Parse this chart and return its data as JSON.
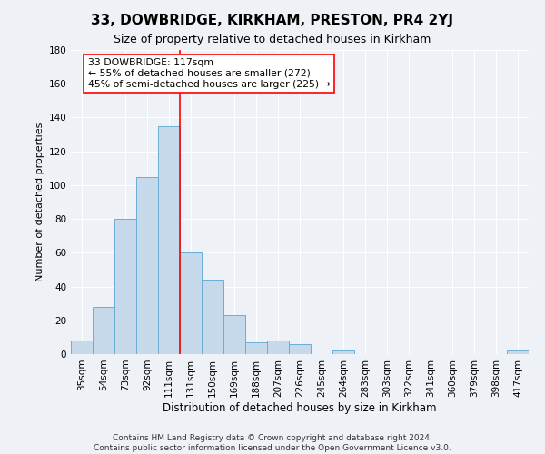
{
  "title": "33, DOWBRIDGE, KIRKHAM, PRESTON, PR4 2YJ",
  "subtitle": "Size of property relative to detached houses in Kirkham",
  "xlabel": "Distribution of detached houses by size in Kirkham",
  "ylabel": "Number of detached properties",
  "bar_labels": [
    "35sqm",
    "54sqm",
    "73sqm",
    "92sqm",
    "111sqm",
    "131sqm",
    "150sqm",
    "169sqm",
    "188sqm",
    "207sqm",
    "226sqm",
    "245sqm",
    "264sqm",
    "283sqm",
    "303sqm",
    "322sqm",
    "341sqm",
    "360sqm",
    "379sqm",
    "398sqm",
    "417sqm"
  ],
  "bar_values": [
    8,
    28,
    80,
    105,
    135,
    60,
    44,
    23,
    7,
    8,
    6,
    0,
    2,
    0,
    0,
    0,
    0,
    0,
    0,
    0,
    2
  ],
  "bar_color": "#c5d9eb",
  "bar_edge_color": "#6aaed6",
  "ylim": [
    0,
    180
  ],
  "yticks": [
    0,
    20,
    40,
    60,
    80,
    100,
    120,
    140,
    160,
    180
  ],
  "red_line_x": 4.5,
  "annotation_title": "33 DOWBRIDGE: 117sqm",
  "annotation_line1": "← 55% of detached houses are smaller (272)",
  "annotation_line2": "45% of semi-detached houses are larger (225) →",
  "footer1": "Contains HM Land Registry data © Crown copyright and database right 2024.",
  "footer2": "Contains public sector information licensed under the Open Government Licence v3.0.",
  "background_color": "#eef2f7",
  "plot_background": "#eef2f7",
  "grid_color": "#ffffff",
  "title_fontsize": 11,
  "subtitle_fontsize": 9,
  "ylabel_fontsize": 8,
  "xlabel_fontsize": 8.5,
  "tick_fontsize": 7.5,
  "footer_fontsize": 6.5
}
